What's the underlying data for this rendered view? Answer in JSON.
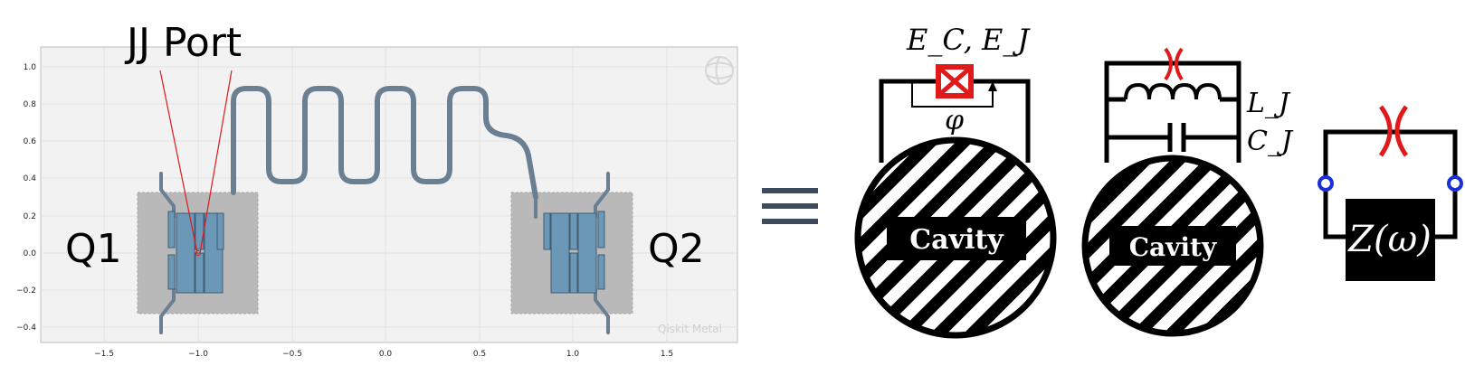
{
  "layout_panel": {
    "title": "JJ Port",
    "qubit_left": "Q1",
    "qubit_right": "Q2",
    "watermark": "Qiskit Metal",
    "x_ticks": [
      "−1.5",
      "−1.0",
      "−0.5",
      "0.0",
      "0.5",
      "1.0",
      "1.5"
    ],
    "y_ticks": [
      "1.0",
      "0.8",
      "0.6",
      "0.4",
      "0.2",
      "0.0",
      "−0.2",
      "−0.4"
    ]
  },
  "equivalence_symbol": "≡",
  "circuit_a": {
    "energy_label": "E_C, E_J",
    "phase_label": "φ",
    "cavity_label": "Cavity"
  },
  "circuit_b": {
    "inductance_label": "L_J",
    "capacitance_label": "C_J",
    "cavity_label": "Cavity"
  },
  "circuit_c": {
    "impedance_label": "Z(ω)"
  },
  "colors": {
    "junction": "#e0191b",
    "port_node": "#1b2fd6",
    "qubit_pad": "#6b98b6",
    "pocket": "#b9b9b9",
    "trace": "#6a7f92",
    "plot_bg": "#f2f2f2"
  }
}
